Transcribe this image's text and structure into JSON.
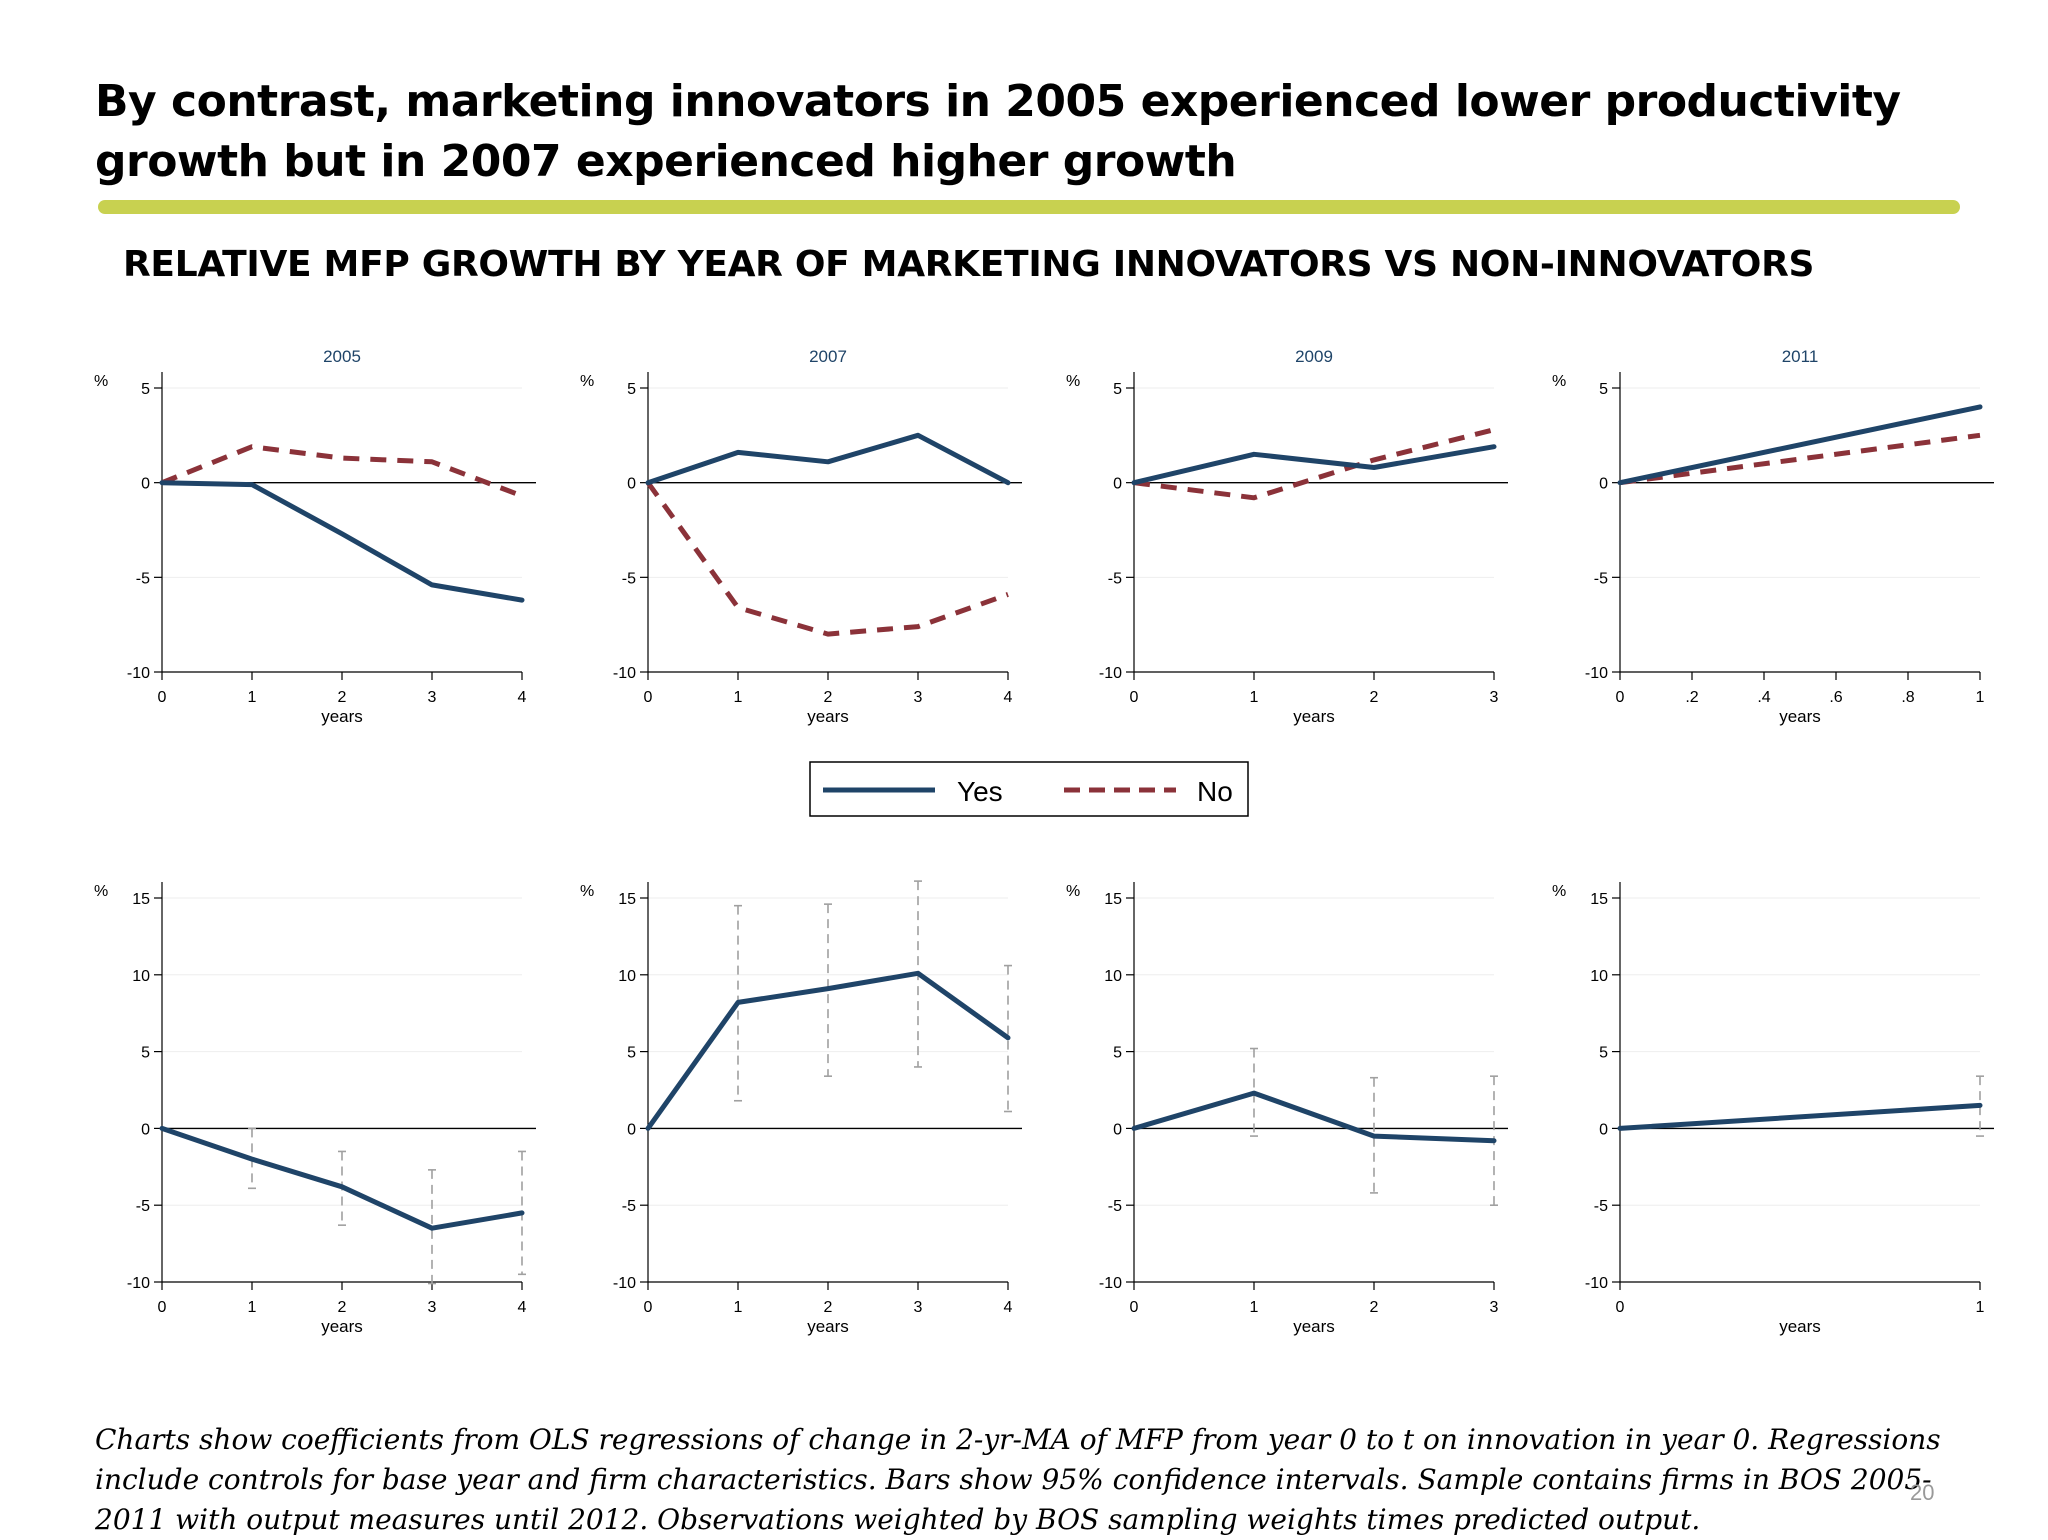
{
  "slide": {
    "title": "By contrast, marketing innovators in 2005 experienced lower productivity growth but in 2007 experienced higher growth",
    "figure_title": "RELATIVE MFP GROWTH BY YEAR OF MARKETING INNOVATORS VS NON-INNOVATORS",
    "footnote": "Charts show coefficients from OLS regressions of change in 2-yr-MA of MFP from year 0 to t on innovation in year 0. Regressions include controls for base year and firm characteristics. Bars show 95% confidence intervals. Sample contains firms in BOS 2005-2011 with output measures until 2012. Observations weighted by BOS sampling weights times predicted output.",
    "page_number": "20"
  },
  "colors": {
    "accent_rule": "#c8d150",
    "yes_series": "#1f4468",
    "no_series": "#8b3239",
    "ci_bars": "#a0a0a0"
  },
  "legend": {
    "items": [
      "Yes",
      "No"
    ]
  },
  "chart_data": [
    {
      "type": "line",
      "row": "top",
      "title": "2005",
      "ylabel": "%",
      "xlabel": "years",
      "xlim": [
        0,
        4
      ],
      "ylim": [
        -10,
        5
      ],
      "x_ticks": [
        "0",
        "1",
        "2",
        "3",
        "4"
      ],
      "x_tick_values": [
        0,
        1,
        2,
        3,
        4
      ],
      "y_ticks": [
        5,
        0,
        -5,
        -10
      ],
      "series": [
        {
          "name": "Yes",
          "x": [
            0,
            1,
            2,
            3,
            4
          ],
          "values": [
            0,
            -0.1,
            -2.7,
            -5.4,
            -6.2
          ]
        },
        {
          "name": "No",
          "x": [
            0,
            1,
            2,
            3,
            4
          ],
          "values": [
            0,
            1.9,
            1.3,
            1.1,
            -0.7
          ]
        }
      ]
    },
    {
      "type": "line",
      "row": "top",
      "title": "2007",
      "ylabel": "%",
      "xlabel": "years",
      "xlim": [
        0,
        4
      ],
      "ylim": [
        -10,
        5
      ],
      "x_ticks": [
        "0",
        "1",
        "2",
        "3",
        "4"
      ],
      "x_tick_values": [
        0,
        1,
        2,
        3,
        4
      ],
      "y_ticks": [
        5,
        0,
        -5,
        -10
      ],
      "series": [
        {
          "name": "Yes",
          "x": [
            0,
            1,
            2,
            3,
            4
          ],
          "values": [
            0,
            1.6,
            1.1,
            2.5,
            0
          ]
        },
        {
          "name": "No",
          "x": [
            0,
            1,
            2,
            3,
            4
          ],
          "values": [
            0,
            -6.6,
            -8.0,
            -7.6,
            -5.9
          ]
        }
      ]
    },
    {
      "type": "line",
      "row": "top",
      "title": "2009",
      "ylabel": "%",
      "xlabel": "years",
      "xlim": [
        0,
        3
      ],
      "ylim": [
        -10,
        5
      ],
      "x_ticks": [
        "0",
        "1",
        "2",
        "3"
      ],
      "x_tick_values": [
        0,
        1,
        2,
        3
      ],
      "y_ticks": [
        5,
        0,
        -5,
        -10
      ],
      "series": [
        {
          "name": "Yes",
          "x": [
            0,
            1,
            2,
            3
          ],
          "values": [
            0,
            1.5,
            0.8,
            1.9
          ]
        },
        {
          "name": "No",
          "x": [
            0,
            1,
            2,
            3
          ],
          "values": [
            0,
            -0.8,
            1.2,
            2.8
          ]
        }
      ]
    },
    {
      "type": "line",
      "row": "top",
      "title": "2011",
      "ylabel": "%",
      "xlabel": "years",
      "xlim": [
        0,
        1
      ],
      "ylim": [
        -10,
        5
      ],
      "x_ticks": [
        "0",
        ".2",
        ".4",
        ".6",
        ".8",
        "1"
      ],
      "x_tick_values": [
        0,
        0.2,
        0.4,
        0.6,
        0.8,
        1
      ],
      "y_ticks": [
        5,
        0,
        -5,
        -10
      ],
      "series": [
        {
          "name": "Yes",
          "x": [
            0,
            1
          ],
          "values": [
            0,
            4.0
          ]
        },
        {
          "name": "No",
          "x": [
            0,
            1
          ],
          "values": [
            0,
            2.5
          ]
        }
      ]
    },
    {
      "type": "line",
      "row": "bottom",
      "title": "",
      "ylabel": "%",
      "xlabel": "years",
      "xlim": [
        0,
        4
      ],
      "ylim": [
        -10,
        15
      ],
      "x_ticks": [
        "0",
        "1",
        "2",
        "3",
        "4"
      ],
      "x_tick_values": [
        0,
        1,
        2,
        3,
        4
      ],
      "y_ticks": [
        15,
        10,
        5,
        0,
        -5,
        -10
      ],
      "series": [
        {
          "name": "",
          "x": [
            0,
            1,
            2,
            3,
            4
          ],
          "values": [
            0,
            -2.0,
            -3.8,
            -6.5,
            -5.5
          ]
        }
      ],
      "ci": [
        {
          "x": 1,
          "low": -3.9,
          "high": 0
        },
        {
          "x": 2,
          "low": -6.3,
          "high": -1.5
        },
        {
          "x": 3,
          "low": -10.1,
          "high": -2.7
        },
        {
          "x": 4,
          "low": -9.5,
          "high": -1.5
        }
      ]
    },
    {
      "type": "line",
      "row": "bottom",
      "title": "",
      "ylabel": "%",
      "xlabel": "years",
      "xlim": [
        0,
        4
      ],
      "ylim": [
        -10,
        15
      ],
      "x_ticks": [
        "0",
        "1",
        "2",
        "3",
        "4"
      ],
      "x_tick_values": [
        0,
        1,
        2,
        3,
        4
      ],
      "y_ticks": [
        15,
        10,
        5,
        0,
        -5,
        -10
      ],
      "series": [
        {
          "name": "",
          "x": [
            0,
            1,
            2,
            3,
            4
          ],
          "values": [
            0,
            8.2,
            9.1,
            10.1,
            5.9
          ]
        }
      ],
      "ci": [
        {
          "x": 1,
          "low": 1.8,
          "high": 14.5
        },
        {
          "x": 2,
          "low": 3.4,
          "high": 14.6
        },
        {
          "x": 3,
          "low": 4.0,
          "high": 16.1
        },
        {
          "x": 4,
          "low": 1.1,
          "high": 10.6
        }
      ]
    },
    {
      "type": "line",
      "row": "bottom",
      "title": "",
      "ylabel": "%",
      "xlabel": "years",
      "xlim": [
        0,
        3
      ],
      "ylim": [
        -10,
        15
      ],
      "x_ticks": [
        "0",
        "1",
        "2",
        "3"
      ],
      "x_tick_values": [
        0,
        1,
        2,
        3
      ],
      "y_ticks": [
        15,
        10,
        5,
        0,
        -5,
        -10
      ],
      "series": [
        {
          "name": "",
          "x": [
            0,
            1,
            2,
            3
          ],
          "values": [
            0,
            2.3,
            -0.5,
            -0.8
          ]
        }
      ],
      "ci": [
        {
          "x": 1,
          "low": -0.5,
          "high": 5.2
        },
        {
          "x": 2,
          "low": -4.2,
          "high": 3.3
        },
        {
          "x": 3,
          "low": -5.0,
          "high": 3.4
        }
      ]
    },
    {
      "type": "line",
      "row": "bottom",
      "title": "",
      "ylabel": "%",
      "xlabel": "years",
      "xlim": [
        0,
        1
      ],
      "ylim": [
        -10,
        15
      ],
      "x_ticks": [
        "0",
        "1"
      ],
      "x_tick_values": [
        0,
        1
      ],
      "y_ticks": [
        15,
        10,
        5,
        0,
        -5,
        -10
      ],
      "series": [
        {
          "name": "",
          "x": [
            0,
            1
          ],
          "values": [
            0,
            1.5
          ]
        }
      ],
      "ci": [
        {
          "x": 1,
          "low": -0.5,
          "high": 3.4
        }
      ]
    }
  ]
}
